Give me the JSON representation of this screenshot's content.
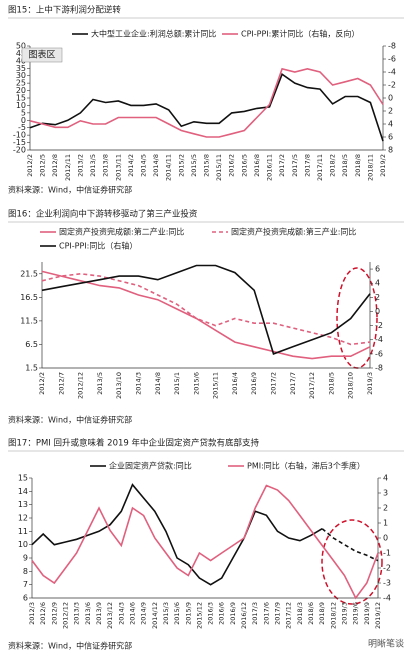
{
  "chart_data": [
    {
      "type": "line",
      "title": "图15：上中下游利润分配逆转",
      "overlay_label": "图表区",
      "source": "资料来源：Wind，中信证券研究部",
      "categories": [
        "2012/2",
        "2012/5",
        "2012/8",
        "2012/11",
        "2013/2",
        "2013/5",
        "2013/8",
        "2013/11",
        "2014/2",
        "2014/5",
        "2014/8",
        "2014/11",
        "2015/2",
        "2015/5",
        "2015/8",
        "2015/11",
        "2016/2",
        "2016/5",
        "2016/8",
        "2016/11",
        "2017/2",
        "2017/5",
        "2017/8",
        "2017/11",
        "2018/2",
        "2018/5",
        "2018/8",
        "2018/11",
        "2019/2"
      ],
      "series": [
        {
          "name": "大中型工业企业:利润总额:累计同比",
          "color": "#111111",
          "values": [
            -5,
            -2,
            -3,
            0,
            5,
            14,
            12,
            13,
            10,
            10,
            11,
            7,
            -4,
            -1,
            -2,
            -2,
            5,
            6,
            8,
            9,
            31,
            25,
            22,
            21,
            11,
            16,
            16,
            12,
            -14
          ]
        },
        {
          "name": "CPI-PPI:累计同比（右轴，反向）",
          "color": "#e0607e",
          "axis": "y2",
          "values": [
            3.5,
            4,
            4.5,
            4.5,
            3.5,
            4,
            4,
            3,
            3,
            3,
            3,
            4,
            5,
            5.5,
            6,
            6,
            5.5,
            5,
            3,
            1,
            -4.5,
            -4,
            -4.5,
            -4,
            -2,
            -2.5,
            -3,
            -2,
            1
          ]
        }
      ],
      "ylim": [
        -20,
        50
      ],
      "yticks": [
        -20,
        -15,
        -10,
        -5,
        0,
        5,
        10,
        15,
        20,
        25,
        30,
        35,
        40,
        45,
        50
      ],
      "y2lim": [
        -8,
        8
      ],
      "y2ticks": [
        -8,
        -6,
        -4,
        -2,
        0,
        2,
        4,
        6,
        8
      ],
      "y2_reversed": true
    },
    {
      "type": "line",
      "title": "图16：企业利润向中下游转移驱动了第三产业投资",
      "source": "资料来源：Wind，中信证券研究部",
      "categories": [
        "2012/2",
        "2012/7",
        "2012/12",
        "2013/5",
        "2013/10",
        "2014/3",
        "2014/8",
        "2015/1",
        "2015/6",
        "2015/11",
        "2016/4",
        "2016/9",
        "2017/2",
        "2017/7",
        "2017/12",
        "2018/5",
        "2018/10",
        "2019/3"
      ],
      "series": [
        {
          "name": "固定资产投资完成额:第二产业:同比",
          "color": "#e0607e",
          "values": [
            22,
            21,
            20,
            19,
            18.5,
            17,
            16,
            14,
            12,
            9.5,
            7,
            6,
            5,
            4,
            3.5,
            4,
            4,
            6
          ]
        },
        {
          "name": "固定资产投资完成额:第三产业:同比",
          "color": "#e0607e",
          "dashed": true,
          "values": [
            20,
            21,
            21.5,
            21,
            20,
            19,
            17,
            15,
            12,
            10.5,
            12,
            11,
            11,
            10,
            9,
            8,
            6.5,
            7
          ]
        },
        {
          "name": "CPI-PPI:同比（右轴）",
          "color": "#111111",
          "axis": "y2",
          "values": [
            3,
            3.5,
            4,
            4.5,
            5,
            5,
            4.5,
            5.5,
            6.5,
            6.5,
            5.5,
            3,
            -6,
            -5,
            -4,
            -3,
            -1,
            2.5
          ]
        }
      ],
      "ylim": [
        1.5,
        24
      ],
      "yticks": [
        1.5,
        6.5,
        11.5,
        16.5,
        21.5
      ],
      "y2lim": [
        -8,
        7
      ],
      "y2ticks": [
        -8,
        -6,
        -4,
        -2,
        0,
        2,
        4,
        6
      ]
    },
    {
      "type": "line",
      "title": "图17：PMI 回升或意味着 2019 年中企业固定资产贷款有底部支持",
      "source": "资料来源：Wind，中信证券研究部",
      "watermark": "明晰笔谈",
      "categories": [
        "2012/3",
        "2012/6",
        "2012/9",
        "2012/12",
        "2013/3",
        "2013/6",
        "2013/9",
        "2013/12",
        "2014/3",
        "2014/6",
        "2014/9",
        "2014/12",
        "2015/3",
        "2015/6",
        "2015/9",
        "2015/12",
        "2016/3",
        "2016/6",
        "2016/9",
        "2016/12",
        "2017/3",
        "2017/6",
        "2017/9",
        "2017/12",
        "2018/3",
        "2018/6",
        "2018/9",
        "2018/12",
        "2019/3",
        "2019/6",
        "2019/9",
        "2019/12"
      ],
      "series": [
        {
          "name": "企业固定资产贷款:同比",
          "color": "#111111",
          "dashed_from": 26,
          "values": [
            10,
            10.8,
            10,
            10.2,
            10.4,
            10.7,
            11,
            11.5,
            12.5,
            14.5,
            13.5,
            12.5,
            11,
            9,
            8.5,
            7.5,
            7,
            7.5,
            9,
            10.5,
            12.5,
            12.2,
            11,
            10.5,
            10.3,
            10.7,
            11.2,
            10.5,
            10,
            9.5,
            9.2,
            8.8
          ]
        },
        {
          "name": "PMI:同比（右轴，滞后3个季度）",
          "color": "#e0607e",
          "axis": "y2",
          "values": [
            -1.5,
            -2.5,
            -3,
            -2,
            -1,
            0.5,
            2,
            0.5,
            -0.5,
            2,
            1.5,
            0,
            -1,
            -2,
            -2.5,
            -1,
            -1.5,
            -1,
            -0.5,
            0,
            2,
            3.5,
            3.2,
            2.5,
            1.5,
            0.5,
            -0.5,
            -1.5,
            -2.5,
            -4,
            -3,
            -1
          ]
        }
      ],
      "ylim": [
        6,
        15
      ],
      "yticks": [
        6,
        7,
        8,
        9,
        10,
        11,
        12,
        13,
        14,
        15
      ],
      "y2lim": [
        -4,
        4
      ],
      "y2ticks": [
        -4,
        -3,
        -2,
        -1,
        0,
        1,
        2,
        3,
        4
      ]
    }
  ]
}
